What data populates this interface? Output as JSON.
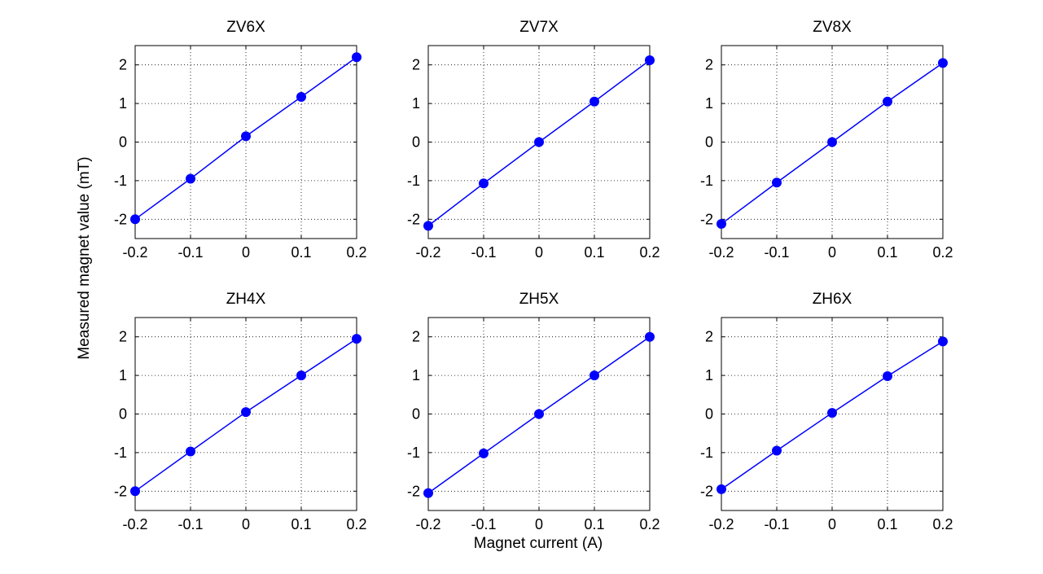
{
  "figure": {
    "ylabel": "Measured magnet value (mT)",
    "xlabel": "Magnet current (A)"
  },
  "style": {
    "line_color": "#0000FF",
    "marker_color": "#0000FF",
    "axis_color": "#000000",
    "grid_color": "#000000"
  },
  "chart_data": [
    {
      "type": "line",
      "title": "ZV6X",
      "xlim": [
        -0.2,
        0.2
      ],
      "ylim": [
        -2.5,
        2.5
      ],
      "grid": true,
      "xticks": [
        "-0.2",
        "-0.1",
        "0",
        "0.1",
        "0.2"
      ],
      "yticks": [
        "-2",
        "-1",
        "0",
        "1",
        "2"
      ],
      "x": [
        -0.2,
        -0.1,
        0,
        0.1,
        0.2
      ],
      "y": [
        -2.0,
        -0.95,
        0.15,
        1.17,
        2.2
      ]
    },
    {
      "type": "line",
      "title": "ZV7X",
      "xlim": [
        -0.2,
        0.2
      ],
      "ylim": [
        -2.5,
        2.5
      ],
      "grid": true,
      "xticks": [
        "-0.2",
        "-0.1",
        "0",
        "0.1",
        "0.2"
      ],
      "yticks": [
        "-2",
        "-1",
        "0",
        "1",
        "2"
      ],
      "x": [
        -0.2,
        -0.1,
        0,
        0.1,
        0.2
      ],
      "y": [
        -2.17,
        -1.07,
        0.0,
        1.05,
        2.12
      ]
    },
    {
      "type": "line",
      "title": "ZV8X",
      "xlim": [
        -0.2,
        0.2
      ],
      "ylim": [
        -2.5,
        2.5
      ],
      "grid": true,
      "xticks": [
        "-0.2",
        "-0.1",
        "0",
        "0.1",
        "0.2"
      ],
      "yticks": [
        "-2",
        "-1",
        "0",
        "1",
        "2"
      ],
      "x": [
        -0.2,
        -0.1,
        0,
        0.1,
        0.2
      ],
      "y": [
        -2.12,
        -1.05,
        0.0,
        1.05,
        2.05
      ]
    },
    {
      "type": "line",
      "title": "ZH4X",
      "xlim": [
        -0.2,
        0.2
      ],
      "ylim": [
        -2.5,
        2.5
      ],
      "grid": true,
      "xticks": [
        "-0.2",
        "-0.1",
        "0",
        "0.1",
        "0.2"
      ],
      "yticks": [
        "-2",
        "-1",
        "0",
        "1",
        "2"
      ],
      "x": [
        -0.2,
        -0.1,
        0,
        0.1,
        0.2
      ],
      "y": [
        -2.0,
        -0.97,
        0.05,
        1.0,
        1.95
      ]
    },
    {
      "type": "line",
      "title": "ZH5X",
      "xlim": [
        -0.2,
        0.2
      ],
      "ylim": [
        -2.5,
        2.5
      ],
      "grid": true,
      "xticks": [
        "-0.2",
        "-0.1",
        "0",
        "0.1",
        "0.2"
      ],
      "yticks": [
        "-2",
        "-1",
        "0",
        "1",
        "2"
      ],
      "x": [
        -0.2,
        -0.1,
        0,
        0.1,
        0.2
      ],
      "y": [
        -2.05,
        -1.02,
        0.0,
        1.0,
        2.0
      ]
    },
    {
      "type": "line",
      "title": "ZH6X",
      "xlim": [
        -0.2,
        0.2
      ],
      "ylim": [
        -2.5,
        2.5
      ],
      "grid": true,
      "xticks": [
        "-0.2",
        "-0.1",
        "0",
        "0.1",
        "0.2"
      ],
      "yticks": [
        "-2",
        "-1",
        "0",
        "1",
        "2"
      ],
      "x": [
        -0.2,
        -0.1,
        0,
        0.1,
        0.2
      ],
      "y": [
        -1.95,
        -0.95,
        0.03,
        0.98,
        1.88
      ]
    }
  ]
}
